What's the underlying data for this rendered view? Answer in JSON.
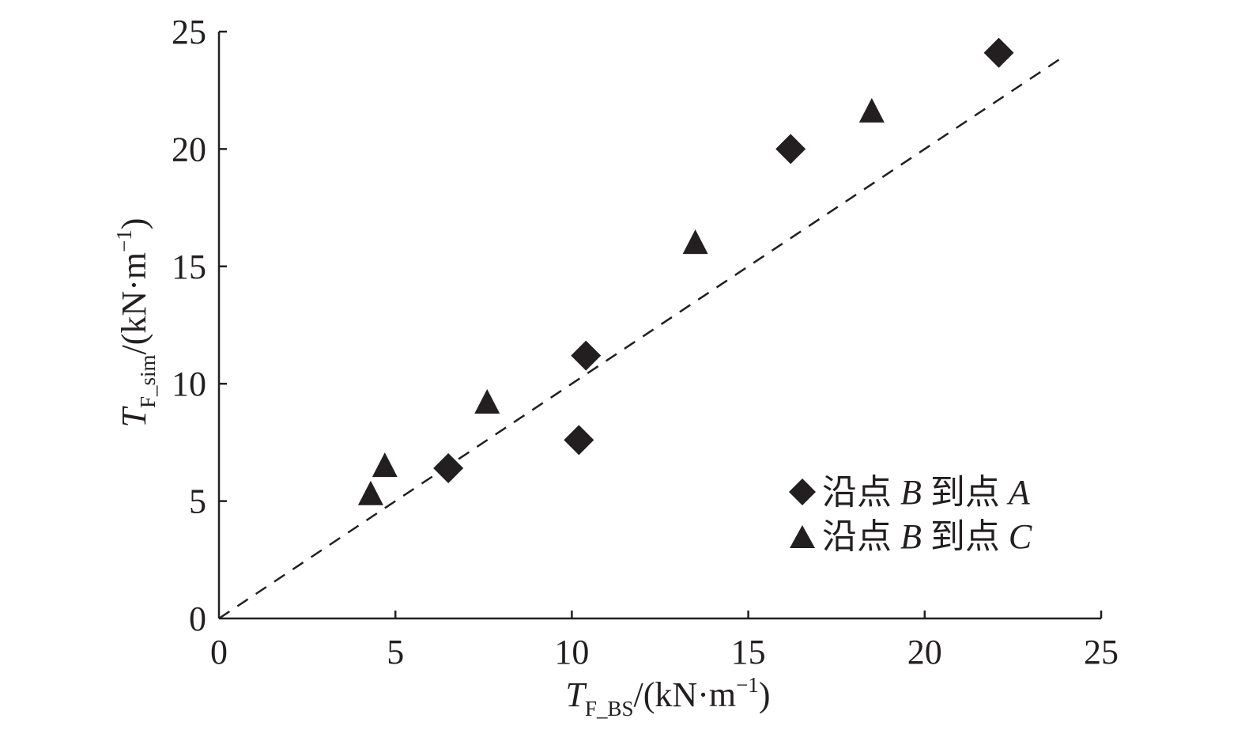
{
  "chart_data": {
    "type": "scatter",
    "xlabel": {
      "symbol": "T",
      "subscript": "F_BS",
      "unit_open": "/(kN·m",
      "unit_exp": "−1",
      "unit_close": ")"
    },
    "ylabel": {
      "symbol": "T",
      "subscript": "F_sim",
      "unit_open": "/(kN·m",
      "unit_exp": "−1",
      "unit_close": ")"
    },
    "xlim": [
      0,
      25
    ],
    "ylim": [
      0,
      25
    ],
    "x_ticks": [
      "0",
      "5",
      "10",
      "15",
      "20",
      "25"
    ],
    "y_ticks": [
      "0",
      "5",
      "10",
      "15",
      "20",
      "25"
    ],
    "grid": false,
    "legend_position": "bottom-right",
    "reference_line": {
      "style": "dashed",
      "from": [
        0,
        0
      ],
      "to": [
        24,
        24
      ]
    },
    "series": [
      {
        "name": "沿点 B 到点 A",
        "name_prefix": "沿点 ",
        "name_b": "B",
        "name_mid": " 到点 ",
        "name_end": "A",
        "marker": "diamond",
        "color": "#231f20",
        "points": [
          {
            "x": 6.5,
            "y": 6.4
          },
          {
            "x": 10.2,
            "y": 7.6
          },
          {
            "x": 10.4,
            "y": 11.2
          },
          {
            "x": 16.2,
            "y": 20.0
          },
          {
            "x": 22.1,
            "y": 24.1
          }
        ]
      },
      {
        "name": "沿点 B 到点 C",
        "name_prefix": "沿点 ",
        "name_b": "B",
        "name_mid": " 到点 ",
        "name_end": "C",
        "marker": "triangle",
        "color": "#231f20",
        "points": [
          {
            "x": 4.3,
            "y": 5.3
          },
          {
            "x": 4.7,
            "y": 6.5
          },
          {
            "x": 7.6,
            "y": 9.2
          },
          {
            "x": 13.5,
            "y": 16.0
          },
          {
            "x": 18.5,
            "y": 21.6
          }
        ]
      }
    ]
  }
}
